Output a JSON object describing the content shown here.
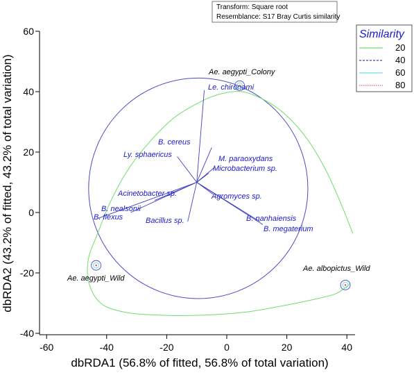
{
  "chart_data": {
    "type": "scatter",
    "title": "",
    "xlabel": "dbRDA1 (56.8% of fitted, 56.8% of total variation)",
    "ylabel": "dbRDA2 (43.2% of fitted, 43.2% of total variation)",
    "xlim": [
      -65,
      44
    ],
    "ylim": [
      -42,
      63
    ],
    "x_ticks": [
      -60,
      -40,
      -20,
      0,
      20,
      40
    ],
    "y_ticks": [
      -40,
      -20,
      0,
      20,
      40,
      60
    ],
    "grid": false,
    "info_box": [
      "Transform: Square root",
      "Resemblance: S17 Bray Curtis similarity"
    ],
    "legend": {
      "title": "Similarity",
      "position": "top-right",
      "items": [
        {
          "label": "20",
          "color": "#6fdc6f",
          "style": "solid"
        },
        {
          "label": "40",
          "color": "#4040c0",
          "style": "dashed"
        },
        {
          "label": "60",
          "color": "#6fd9e6",
          "style": "solid"
        },
        {
          "label": "80",
          "color": "#e06060",
          "style": "dotted"
        }
      ]
    },
    "samples": [
      {
        "name": "Ae. aegypti_Colony",
        "x": 4.3,
        "y": 42
      },
      {
        "name": "Ae. aegypti_Wild",
        "x": -43.5,
        "y": -17.5
      },
      {
        "name": "Ae. albopictus_Wild",
        "x": 39.5,
        "y": -24
      }
    ],
    "vector_origin": [
      -10,
      10
    ],
    "vectors": [
      {
        "name": "Le. chironomi",
        "x": -7.5,
        "y": 40.5
      },
      {
        "name": "B. cereus",
        "x": -5,
        "y": 21.5
      },
      {
        "name": "Ly. sphaericus",
        "x": -16.5,
        "y": 18.5
      },
      {
        "name": "M. paraoxydans",
        "x": -4,
        "y": 15
      },
      {
        "name": "Microbacterium sp.",
        "x": -6,
        "y": 13
      },
      {
        "name": "Acinetobacter sp.",
        "x": -24,
        "y": 4
      },
      {
        "name": "Agromyces sp.",
        "x": -4.5,
        "y": 6
      },
      {
        "name": "B. nealsonii",
        "x": -32,
        "y": 0
      },
      {
        "name": "B. flexus",
        "x": -43,
        "y": -2
      },
      {
        "name": "Bacillus sp.",
        "x": -13,
        "y": -3
      },
      {
        "name": "B. nanhaiensis",
        "x": 11,
        "y": -3
      },
      {
        "name": "B. megaterium",
        "x": 12,
        "y": -4
      }
    ],
    "contours": {
      "similarity_20_curve": [
        [
          42,
          -7
        ],
        [
          38,
          3
        ],
        [
          33,
          14
        ],
        [
          27,
          24
        ],
        [
          20,
          32
        ],
        [
          13,
          37
        ],
        [
          5,
          40
        ],
        [
          -3,
          39
        ],
        [
          -10,
          36
        ],
        [
          -18,
          31
        ],
        [
          -26,
          23
        ],
        [
          -33,
          14
        ],
        [
          -39,
          3
        ],
        [
          -43,
          -7
        ],
        [
          -46,
          -15
        ],
        [
          -46,
          -23
        ],
        [
          -42,
          -30
        ],
        [
          -34,
          -33
        ],
        [
          -22,
          -34
        ],
        [
          -8,
          -34
        ],
        [
          6,
          -33
        ],
        [
          18,
          -31
        ],
        [
          28,
          -29
        ],
        [
          36,
          -27
        ],
        [
          40,
          -24.5
        ],
        [
          41,
          -23.5
        ]
      ],
      "similarity_40_circle": {
        "cx": -9.5,
        "cy": 8,
        "r": 36.5
      }
    }
  }
}
